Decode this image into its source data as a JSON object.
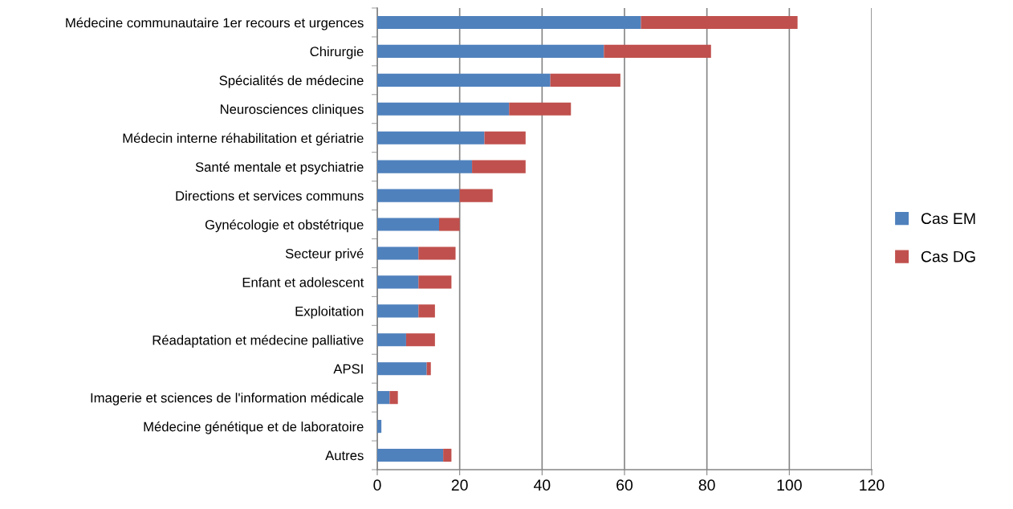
{
  "chart_data": {
    "type": "bar",
    "orientation": "horizontal",
    "stacked": true,
    "categories": [
      "Médecine communautaire 1er recours et urgences",
      "Chirurgie",
      "Spécialités de médecine",
      "Neurosciences cliniques",
      "Médecin interne réhabilitation et gériatrie",
      "Santé mentale et psychiatrie",
      "Directions et services communs",
      "Gynécologie et obstétrique",
      "Secteur privé",
      "Enfant et adolescent",
      "Exploitation",
      "Réadaptation et médecine palliative",
      "APSI",
      "Imagerie et sciences de l'information médicale",
      "Médecine génétique et de laboratoire",
      "Autres"
    ],
    "series": [
      {
        "name": "Cas EM",
        "color": "#4f81bd",
        "values": [
          64,
          55,
          42,
          32,
          26,
          23,
          20,
          15,
          10,
          10,
          10,
          7,
          12,
          3,
          1,
          16
        ]
      },
      {
        "name": "Cas DG",
        "color": "#c0504d",
        "values": [
          38,
          26,
          17,
          15,
          10,
          13,
          8,
          5,
          9,
          8,
          4,
          7,
          1,
          2,
          0,
          2
        ]
      }
    ],
    "xlim": [
      0,
      120
    ],
    "xticks": [
      0,
      20,
      40,
      60,
      80,
      100,
      120
    ],
    "grid": "x",
    "legend": "right"
  }
}
